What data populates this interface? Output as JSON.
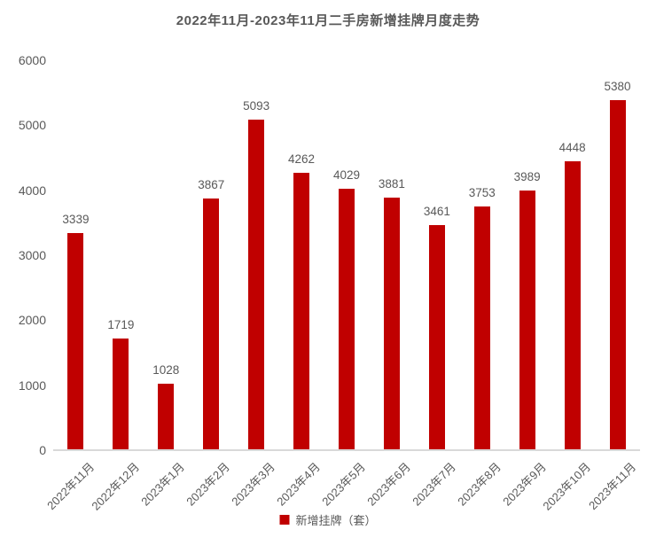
{
  "title": "2022年11月-2023年11月二手房新增挂牌月度走势",
  "legend": {
    "label": "新增挂牌（套）",
    "swatch_color": "#c00000",
    "position": "bottom-center"
  },
  "colors": {
    "bar": "#c00000",
    "text": "#595959",
    "axis_line": "#d9d9d9",
    "background": "#ffffff"
  },
  "chart_data": {
    "type": "bar",
    "title": "2022年11月-2023年11月二手房新增挂牌月度走势",
    "categories": [
      "2022年11月",
      "2022年12月",
      "2023年1月",
      "2023年2月",
      "2023年3月",
      "2023年4月",
      "2023年5月",
      "2023年6月",
      "2023年7月",
      "2023年8月",
      "2023年9月",
      "2023年10月",
      "2023年11月"
    ],
    "values": [
      3339,
      1719,
      1028,
      3867,
      5093,
      4262,
      4029,
      3881,
      3461,
      3753,
      3989,
      4448,
      5380
    ],
    "series_name": "新增挂牌（套）",
    "xlabel": "",
    "ylabel": "",
    "ylim": [
      0,
      6000
    ],
    "yticks": [
      0,
      1000,
      2000,
      3000,
      4000,
      5000,
      6000
    ],
    "grid": false,
    "legend_position": "bottom",
    "bar_color": "#c00000",
    "data_labels": true
  }
}
